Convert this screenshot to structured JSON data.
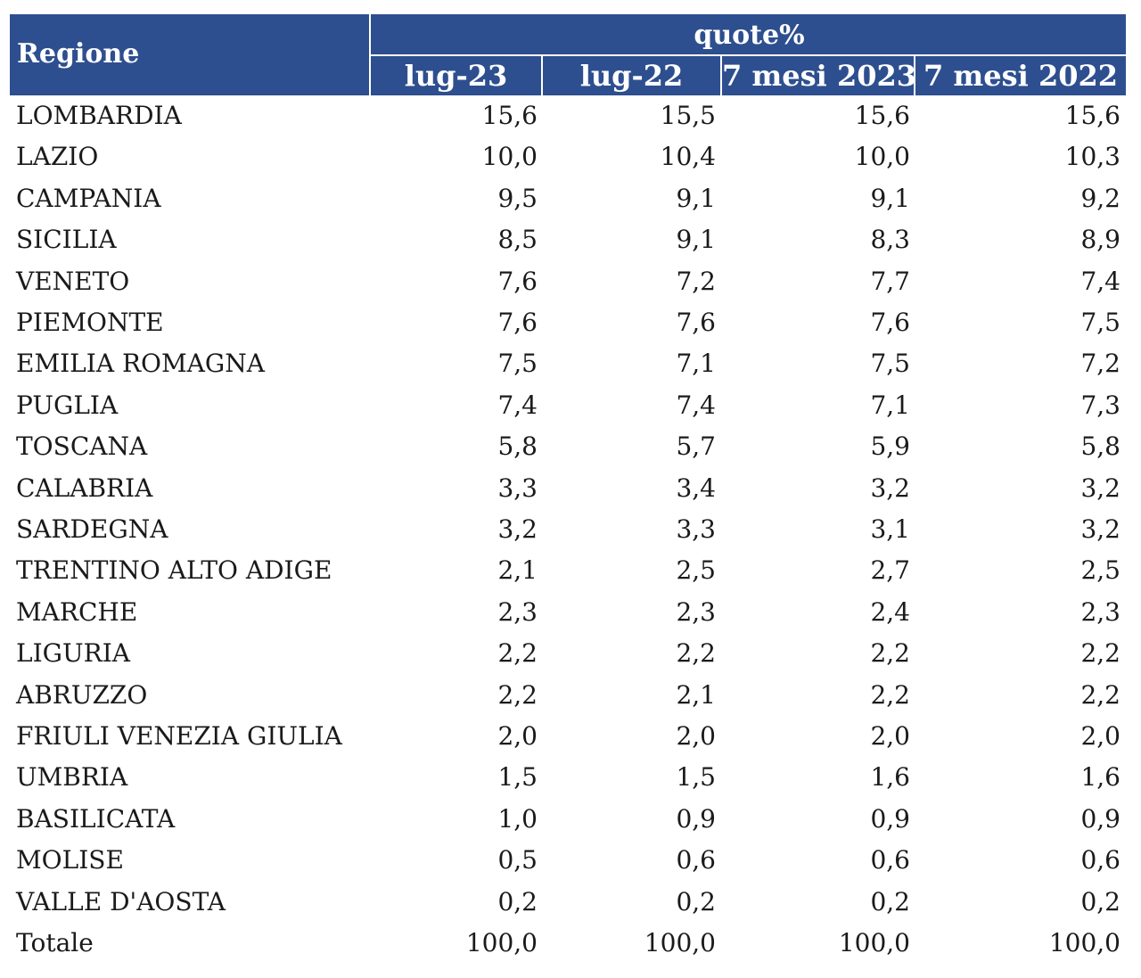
{
  "header": {
    "region_label": "Regione",
    "group_label": "quote%",
    "columns": [
      "lug-23",
      "lug-22",
      "7 mesi 2023",
      "7 mesi 2022"
    ]
  },
  "rows": [
    {
      "region": "LOMBARDIA",
      "values": [
        "15,6",
        "15,5",
        "15,6",
        "15,6"
      ]
    },
    {
      "region": "LAZIO",
      "values": [
        "10,0",
        "10,4",
        "10,0",
        "10,3"
      ]
    },
    {
      "region": "CAMPANIA",
      "values": [
        "9,5",
        "9,1",
        "9,1",
        "9,2"
      ]
    },
    {
      "region": "SICILIA",
      "values": [
        "8,5",
        "9,1",
        "8,3",
        "8,9"
      ]
    },
    {
      "region": "VENETO",
      "values": [
        "7,6",
        "7,2",
        "7,7",
        "7,4"
      ]
    },
    {
      "region": "PIEMONTE",
      "values": [
        "7,6",
        "7,6",
        "7,6",
        "7,5"
      ]
    },
    {
      "region": "EMILIA ROMAGNA",
      "values": [
        "7,5",
        "7,1",
        "7,5",
        "7,2"
      ]
    },
    {
      "region": "PUGLIA",
      "values": [
        "7,4",
        "7,4",
        "7,1",
        "7,3"
      ]
    },
    {
      "region": "TOSCANA",
      "values": [
        "5,8",
        "5,7",
        "5,9",
        "5,8"
      ]
    },
    {
      "region": "CALABRIA",
      "values": [
        "3,3",
        "3,4",
        "3,2",
        "3,2"
      ]
    },
    {
      "region": "SARDEGNA",
      "values": [
        "3,2",
        "3,3",
        "3,1",
        "3,2"
      ]
    },
    {
      "region": "TRENTINO ALTO ADIGE",
      "values": [
        "2,1",
        "2,5",
        "2,7",
        "2,5"
      ]
    },
    {
      "region": "MARCHE",
      "values": [
        "2,3",
        "2,3",
        "2,4",
        "2,3"
      ]
    },
    {
      "region": "LIGURIA",
      "values": [
        "2,2",
        "2,2",
        "2,2",
        "2,2"
      ]
    },
    {
      "region": "ABRUZZO",
      "values": [
        "2,2",
        "2,1",
        "2,2",
        "2,2"
      ]
    },
    {
      "region": "FRIULI VENEZIA GIULIA",
      "values": [
        "2,0",
        "2,0",
        "2,0",
        "2,0"
      ]
    },
    {
      "region": "UMBRIA",
      "values": [
        "1,5",
        "1,5",
        "1,6",
        "1,6"
      ]
    },
    {
      "region": "BASILICATA",
      "values": [
        "1,0",
        "0,9",
        "0,9",
        "0,9"
      ]
    },
    {
      "region": "MOLISE",
      "values": [
        "0,5",
        "0,6",
        "0,6",
        "0,6"
      ]
    },
    {
      "region": "VALLE D'AOSTA",
      "values": [
        "0,2",
        "0,2",
        "0,2",
        "0,2"
      ]
    },
    {
      "region": "Totale",
      "values": [
        "100,0",
        "100,0",
        "100,0",
        "100,0"
      ]
    }
  ]
}
